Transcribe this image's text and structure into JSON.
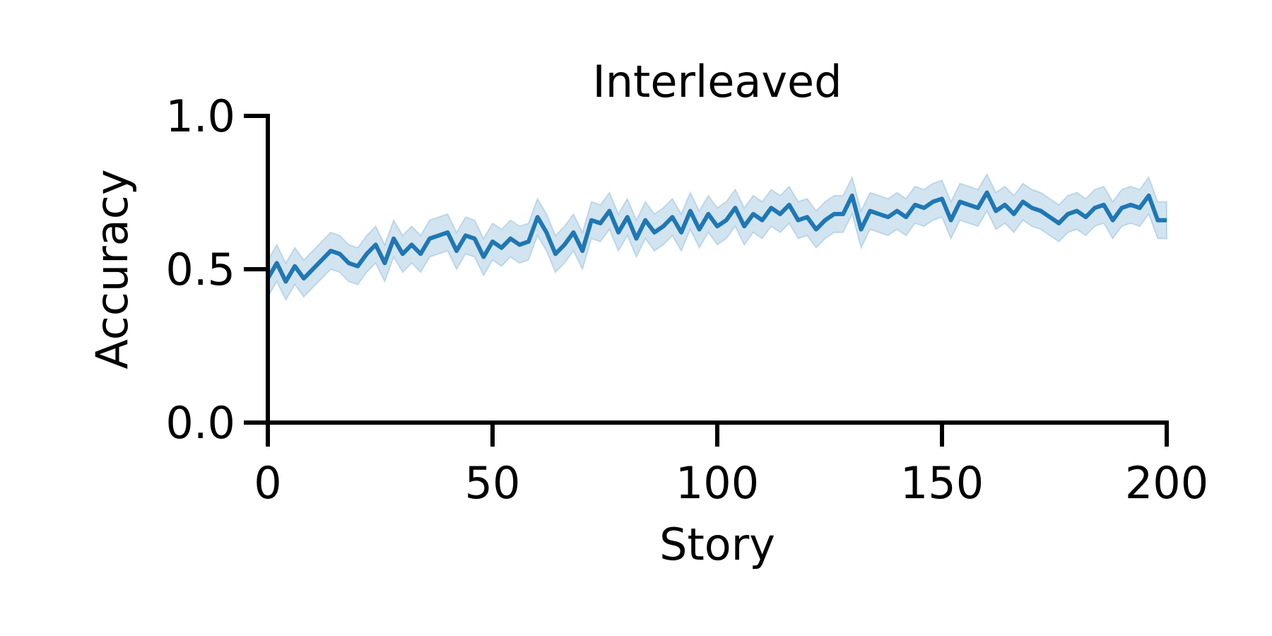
{
  "chart_data": {
    "type": "line",
    "title": "Interleaved",
    "x_label": "Story",
    "y_label": "Accuracy",
    "x": [
      0,
      2,
      4,
      6,
      8,
      10,
      12,
      14,
      16,
      18,
      20,
      22,
      24,
      26,
      28,
      30,
      32,
      34,
      36,
      38,
      40,
      42,
      44,
      46,
      48,
      50,
      52,
      54,
      56,
      58,
      60,
      62,
      64,
      66,
      68,
      70,
      72,
      74,
      76,
      78,
      80,
      82,
      84,
      86,
      88,
      90,
      92,
      94,
      96,
      98,
      100,
      102,
      104,
      106,
      108,
      110,
      112,
      114,
      116,
      118,
      120,
      122,
      124,
      126,
      128,
      130,
      132,
      134,
      136,
      138,
      140,
      142,
      144,
      146,
      148,
      150,
      152,
      154,
      156,
      158,
      160,
      162,
      164,
      166,
      168,
      170,
      172,
      174,
      176,
      178,
      180,
      182,
      184,
      186,
      188,
      190,
      192,
      194,
      196,
      198,
      200
    ],
    "series": [
      {
        "color": "#1f77b4",
        "values": [
          0.47,
          0.52,
          0.46,
          0.51,
          0.47,
          0.5,
          0.53,
          0.56,
          0.55,
          0.52,
          0.51,
          0.55,
          0.58,
          0.52,
          0.6,
          0.55,
          0.58,
          0.55,
          0.6,
          0.61,
          0.62,
          0.56,
          0.61,
          0.6,
          0.54,
          0.59,
          0.57,
          0.6,
          0.58,
          0.59,
          0.67,
          0.62,
          0.55,
          0.58,
          0.62,
          0.56,
          0.66,
          0.65,
          0.69,
          0.62,
          0.67,
          0.6,
          0.66,
          0.62,
          0.64,
          0.67,
          0.62,
          0.69,
          0.63,
          0.68,
          0.64,
          0.66,
          0.7,
          0.64,
          0.68,
          0.66,
          0.7,
          0.68,
          0.71,
          0.66,
          0.67,
          0.63,
          0.66,
          0.68,
          0.68,
          0.74,
          0.63,
          0.69,
          0.68,
          0.67,
          0.69,
          0.67,
          0.71,
          0.7,
          0.72,
          0.73,
          0.66,
          0.72,
          0.71,
          0.7,
          0.75,
          0.69,
          0.71,
          0.68,
          0.72,
          0.7,
          0.69,
          0.67,
          0.65,
          0.68,
          0.69,
          0.67,
          0.7,
          0.71,
          0.66,
          0.7,
          0.71,
          0.7,
          0.74,
          0.66,
          0.66
        ]
      }
    ],
    "band_halfwidth": 0.06,
    "xlim": [
      0,
      200
    ],
    "xticks": [
      0,
      50,
      100,
      150,
      200
    ],
    "ylim": [
      0,
      1
    ],
    "yticks": [
      {
        "value": 0,
        "label": "0.0"
      },
      {
        "value": 0.5,
        "label": "0.5"
      },
      {
        "value": 1,
        "label": "1.0"
      }
    ]
  }
}
